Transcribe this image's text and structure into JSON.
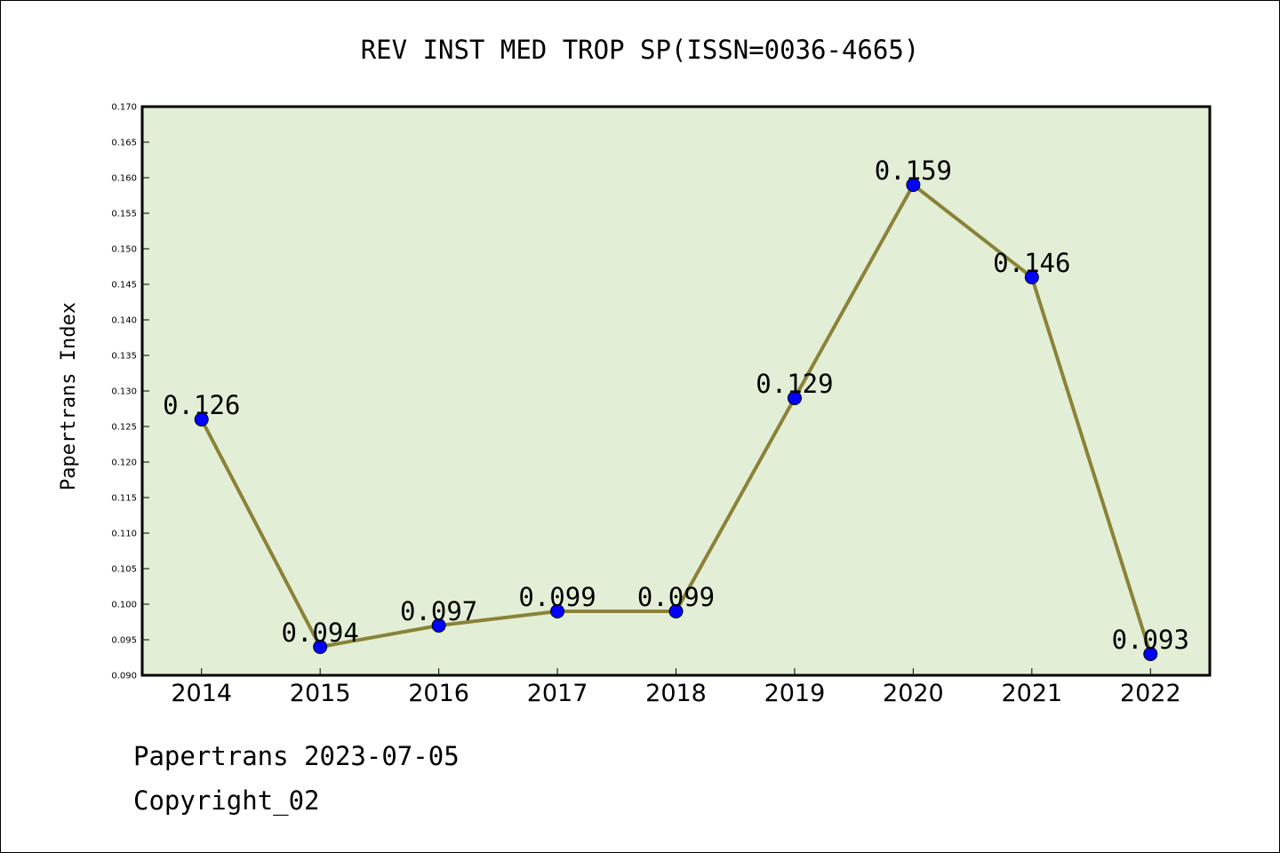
{
  "chart_data": {
    "type": "line",
    "title": "REV INST MED TROP SP(ISSN=0036-4665)",
    "ylabel": "Papertrans Index",
    "xlabel": "",
    "categories": [
      "2014",
      "2015",
      "2016",
      "2017",
      "2018",
      "2019",
      "2020",
      "2021",
      "2022"
    ],
    "series": [
      {
        "values": [
          0.126,
          0.094,
          0.097,
          0.099,
          0.099,
          0.129,
          0.159,
          0.146,
          0.093
        ],
        "labels": [
          "0.126",
          "0.094",
          "0.097",
          "0.099",
          "0.099",
          "0.129",
          "0.159",
          "0.146",
          "0.093"
        ]
      }
    ],
    "ylim": [
      0.09,
      0.17
    ],
    "ytick_step": 0.005,
    "grid": false,
    "legend": "none",
    "colors": {
      "plot_background": "#e2efd6",
      "line": "#8b8238",
      "marker": "#0000ff"
    }
  },
  "footer": {
    "line1": "Papertrans 2023-07-05",
    "line2": "Copyright_02"
  }
}
